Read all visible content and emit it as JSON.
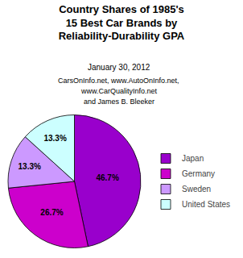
{
  "chart_data": {
    "type": "pie",
    "title": "Country Shares of 1985's\n15 Best Car Brands by\nReliability-Durability GPA",
    "subtitle": "January 30, 2012",
    "annotations": [
      "CarsOnInfo.net, www.AutoOnInfo.net,",
      "www.CarQualityInfo.net",
      "and James B. Bleeker"
    ],
    "categories": [
      "Japan",
      "Germany",
      "Sweden",
      "United States"
    ],
    "values": [
      46.7,
      26.7,
      13.3,
      13.3
    ],
    "value_labels": [
      "46.7%",
      "26.7%",
      "13.3%",
      "13.3%"
    ],
    "colors": [
      "#9900cc",
      "#cc00cc",
      "#cc99ff",
      "#ccffff"
    ],
    "data_labels": true,
    "legend": "right"
  }
}
